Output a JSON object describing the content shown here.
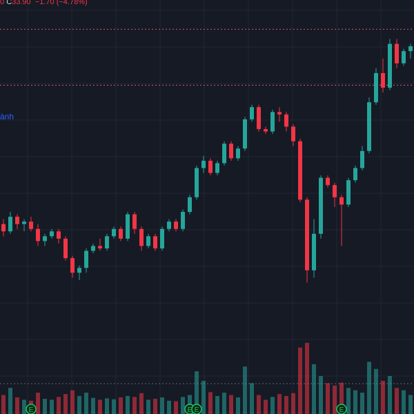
{
  "header": {
    "ohlc_prefix": "0",
    "close_label": "C",
    "close_value": "33.90",
    "change": "−1.70",
    "change_pct": "(−4.78%)"
  },
  "overlay_label": "ành",
  "colors": {
    "background": "#161a25",
    "grid": "#232733",
    "up": "#26a69a",
    "down": "#f23645",
    "dotted_line": "#d05a6e",
    "volume_dotted_line": "#b0b3bd",
    "marker": "#22c55e",
    "text_light": "#d1d4dc",
    "overlay_blue": "#2962ff"
  },
  "marker_label": "E",
  "chart_data": {
    "type": "candlestick",
    "price_axis_visible": false,
    "time_axis_visible": false,
    "ylim": [
      5,
      90
    ],
    "volume_ylim": [
      0,
      160
    ],
    "reference_lines": [
      84,
      72.5
    ],
    "earnings_markers_at_index": [
      4,
      27,
      28,
      49
    ],
    "candles": [
      [
        44.0,
        45.0,
        41.5,
        42.5,
        40
      ],
      [
        42.5,
        46.5,
        42.0,
        45.5,
        55
      ],
      [
        45.5,
        46.0,
        43.0,
        44.0,
        35
      ],
      [
        44.0,
        45.0,
        42.5,
        44.5,
        30
      ],
      [
        44.5,
        45.5,
        42.5,
        43.0,
        28
      ],
      [
        43.0,
        44.0,
        39.5,
        40.5,
        45
      ],
      [
        40.5,
        42.0,
        39.5,
        41.5,
        32
      ],
      [
        41.5,
        43.0,
        41.0,
        42.5,
        30
      ],
      [
        42.5,
        43.0,
        40.0,
        41.0,
        36
      ],
      [
        41.0,
        41.5,
        36.5,
        37.0,
        42
      ],
      [
        37.0,
        37.5,
        33.0,
        34.0,
        50
      ],
      [
        34.0,
        35.5,
        32.5,
        35.0,
        38
      ],
      [
        35.0,
        39.0,
        34.0,
        38.5,
        45
      ],
      [
        38.5,
        40.0,
        38.0,
        39.5,
        34
      ],
      [
        39.5,
        41.0,
        38.5,
        39.0,
        30
      ],
      [
        39.0,
        42.0,
        38.5,
        41.5,
        33
      ],
      [
        41.5,
        43.5,
        41.0,
        43.0,
        31
      ],
      [
        43.0,
        43.5,
        40.5,
        41.0,
        35
      ],
      [
        41.0,
        46.5,
        40.5,
        46.0,
        38
      ],
      [
        46.0,
        46.5,
        42.0,
        43.0,
        36
      ],
      [
        43.0,
        43.5,
        38.5,
        39.5,
        44
      ],
      [
        39.5,
        42.0,
        39.0,
        41.5,
        30
      ],
      [
        41.5,
        42.0,
        38.5,
        39.0,
        32
      ],
      [
        39.0,
        43.5,
        38.5,
        43.0,
        35
      ],
      [
        43.0,
        45.0,
        42.5,
        44.5,
        28
      ],
      [
        44.5,
        45.0,
        42.5,
        43.0,
        27
      ],
      [
        43.0,
        47.0,
        42.5,
        46.5,
        36
      ],
      [
        46.5,
        50.0,
        46.0,
        49.5,
        40
      ],
      [
        49.5,
        56.0,
        49.0,
        55.5,
        90
      ],
      [
        55.5,
        58.0,
        54.5,
        57.0,
        70
      ],
      [
        57.0,
        57.5,
        54.0,
        54.5,
        46
      ],
      [
        54.5,
        57.0,
        54.0,
        56.5,
        38
      ],
      [
        56.5,
        61.0,
        56.0,
        60.5,
        45
      ],
      [
        60.5,
        61.0,
        57.0,
        57.5,
        40
      ],
      [
        57.5,
        60.0,
        57.0,
        59.5,
        35
      ],
      [
        59.5,
        66.0,
        59.0,
        65.5,
        100
      ],
      [
        65.5,
        68.5,
        65.0,
        68.0,
        65
      ],
      [
        68.0,
        68.5,
        63.0,
        63.5,
        40
      ],
      [
        63.5,
        64.0,
        62.5,
        63.0,
        30
      ],
      [
        63.0,
        67.5,
        62.5,
        67.0,
        36
      ],
      [
        67.0,
        68.0,
        65.0,
        66.5,
        42
      ],
      [
        66.5,
        67.0,
        63.0,
        64.0,
        38
      ],
      [
        64.0,
        64.5,
        60.0,
        61.0,
        44
      ],
      [
        61.0,
        61.5,
        48.5,
        49.0,
        140
      ],
      [
        49.0,
        49.5,
        32.0,
        34.5,
        150
      ],
      [
        34.5,
        45.0,
        33.0,
        42.0,
        105
      ],
      [
        42.0,
        54.0,
        41.0,
        53.5,
        80
      ],
      [
        53.5,
        54.0,
        51.5,
        52.0,
        65
      ],
      [
        52.0,
        52.5,
        47.5,
        49.5,
        60
      ],
      [
        49.5,
        50.0,
        39.5,
        48.0,
        66
      ],
      [
        48.0,
        53.5,
        47.5,
        53.0,
        55
      ],
      [
        53.0,
        56.0,
        52.5,
        55.5,
        50
      ],
      [
        55.5,
        60.0,
        55.0,
        59.0,
        45
      ],
      [
        59.0,
        70.0,
        58.5,
        69.0,
        110
      ],
      [
        69.0,
        76.0,
        68.5,
        75.0,
        95
      ],
      [
        75.0,
        78.0,
        71.0,
        72.0,
        70
      ],
      [
        72.0,
        82.0,
        71.5,
        81.0,
        80
      ],
      [
        81.0,
        82.0,
        76.0,
        77.0,
        55
      ],
      [
        77.0,
        80.0,
        76.5,
        79.5,
        50
      ],
      [
        79.5,
        81.0,
        78.0,
        80.5,
        40
      ]
    ]
  }
}
